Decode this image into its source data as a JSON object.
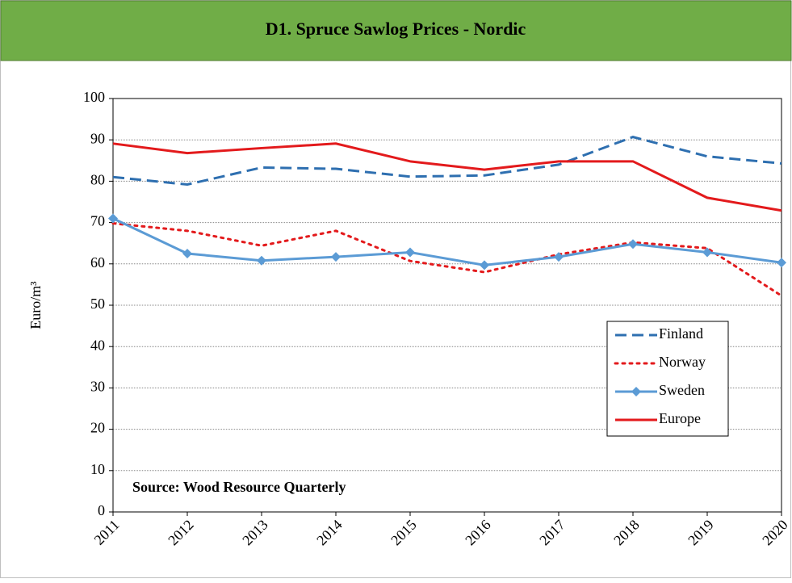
{
  "chart_data": {
    "type": "line",
    "title": "D1. Spruce Sawlog Prices - Nordic",
    "y_label": "Euro/m³",
    "annotation": "Source: Wood Resource Quarterly",
    "categories": [
      "2011",
      "2012",
      "2013",
      "2014",
      "2015",
      "2016",
      "2017",
      "2018",
      "2019",
      "2020"
    ],
    "series": [
      {
        "name": "Finland",
        "color": "#2e6fb0",
        "style": "dashed",
        "values": [
          81,
          79.2,
          83.3,
          83.0,
          81.1,
          81.4,
          84,
          90.7,
          86,
          84.3
        ]
      },
      {
        "name": "Norway",
        "color": "#e31a1c",
        "style": "dotted",
        "values": [
          69.8,
          68,
          64.4,
          68,
          60.7,
          58,
          62.3,
          65.2,
          63.8,
          52.3
        ]
      },
      {
        "name": "Sweden",
        "color": "#5b9bd5",
        "style": "solid",
        "marker": "diamond",
        "values": [
          71,
          62.5,
          60.8,
          61.7,
          62.8,
          59.7,
          61.7,
          64.8,
          62.8,
          60.3
        ]
      },
      {
        "name": "Europe",
        "color": "#e31a1c",
        "style": "solid",
        "values": [
          89.1,
          86.8,
          88,
          89.1,
          84.8,
          82.8,
          84.8,
          84.8,
          76,
          72.9
        ]
      }
    ],
    "ylim": [
      0,
      100
    ],
    "yticks": [
      0,
      10,
      20,
      30,
      40,
      50,
      60,
      70,
      80,
      90,
      100
    ],
    "grid": true
  }
}
